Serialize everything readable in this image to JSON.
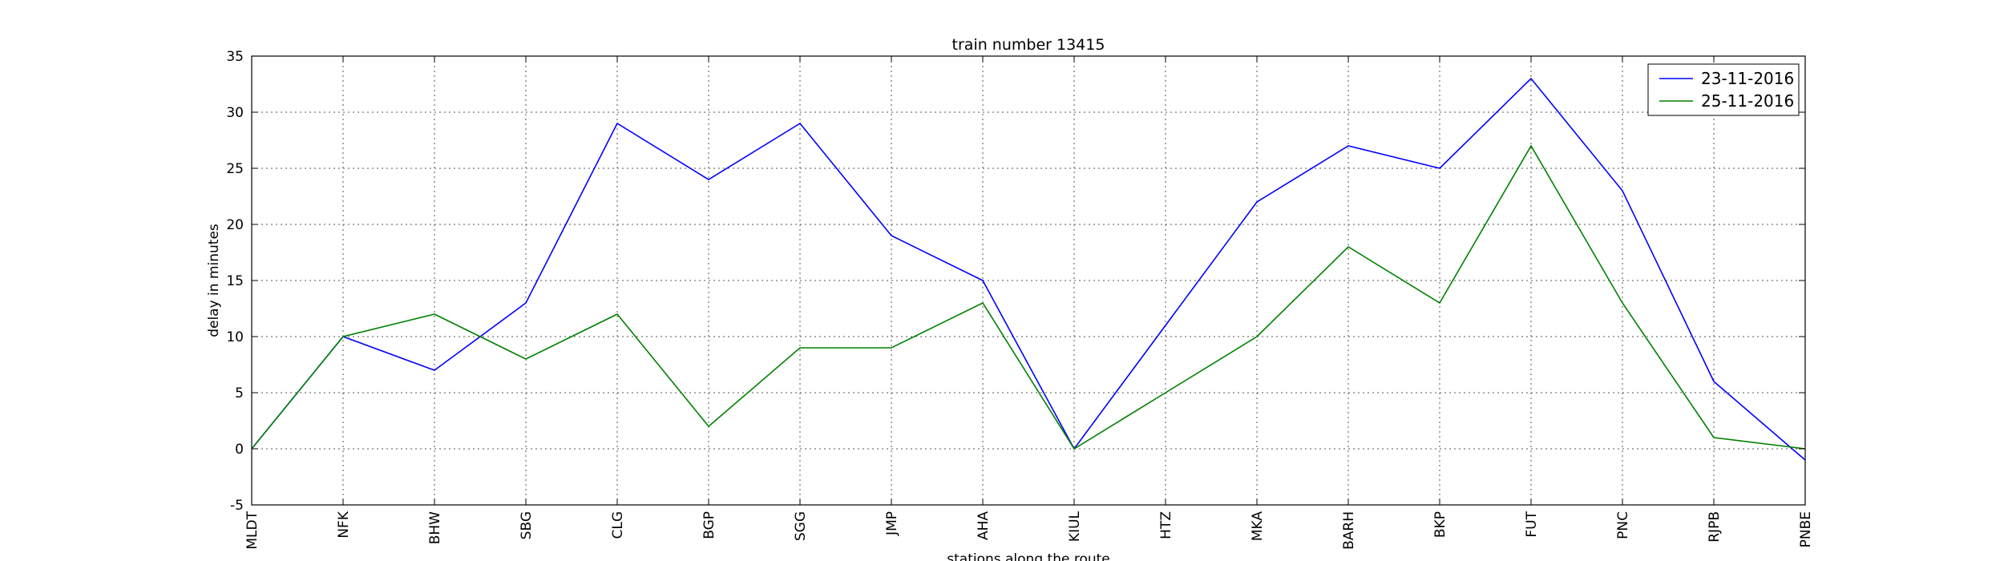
{
  "chart_data": {
    "type": "line",
    "title": "train number 13415",
    "xlabel": "stations along the route",
    "ylabel": "delay in minutes",
    "categories": [
      "MLDT",
      "NFK",
      "BHW",
      "SBG",
      "CLG",
      "BGP",
      "SGG",
      "JMP",
      "AHA",
      "KIUL",
      "HTZ",
      "MKA",
      "BARH",
      "BKP",
      "FUT",
      "PNC",
      "RJPB",
      "PNBE"
    ],
    "ylim": [
      -5,
      35
    ],
    "yticks": [
      -5,
      0,
      5,
      10,
      15,
      20,
      25,
      30,
      35
    ],
    "grid": true,
    "legend_position": "top-right",
    "series": [
      {
        "name": "23-11-2016",
        "color": "#0000ff",
        "values": [
          0,
          10,
          7,
          13,
          29,
          24,
          29,
          19,
          15,
          0,
          11,
          22,
          27,
          25,
          33,
          23,
          6,
          -1
        ]
      },
      {
        "name": "25-11-2016",
        "color": "#008000",
        "values": [
          0,
          10,
          12,
          8,
          12,
          2,
          9,
          9,
          13,
          0,
          5,
          10,
          18,
          13,
          27,
          13,
          1,
          0
        ]
      }
    ]
  }
}
